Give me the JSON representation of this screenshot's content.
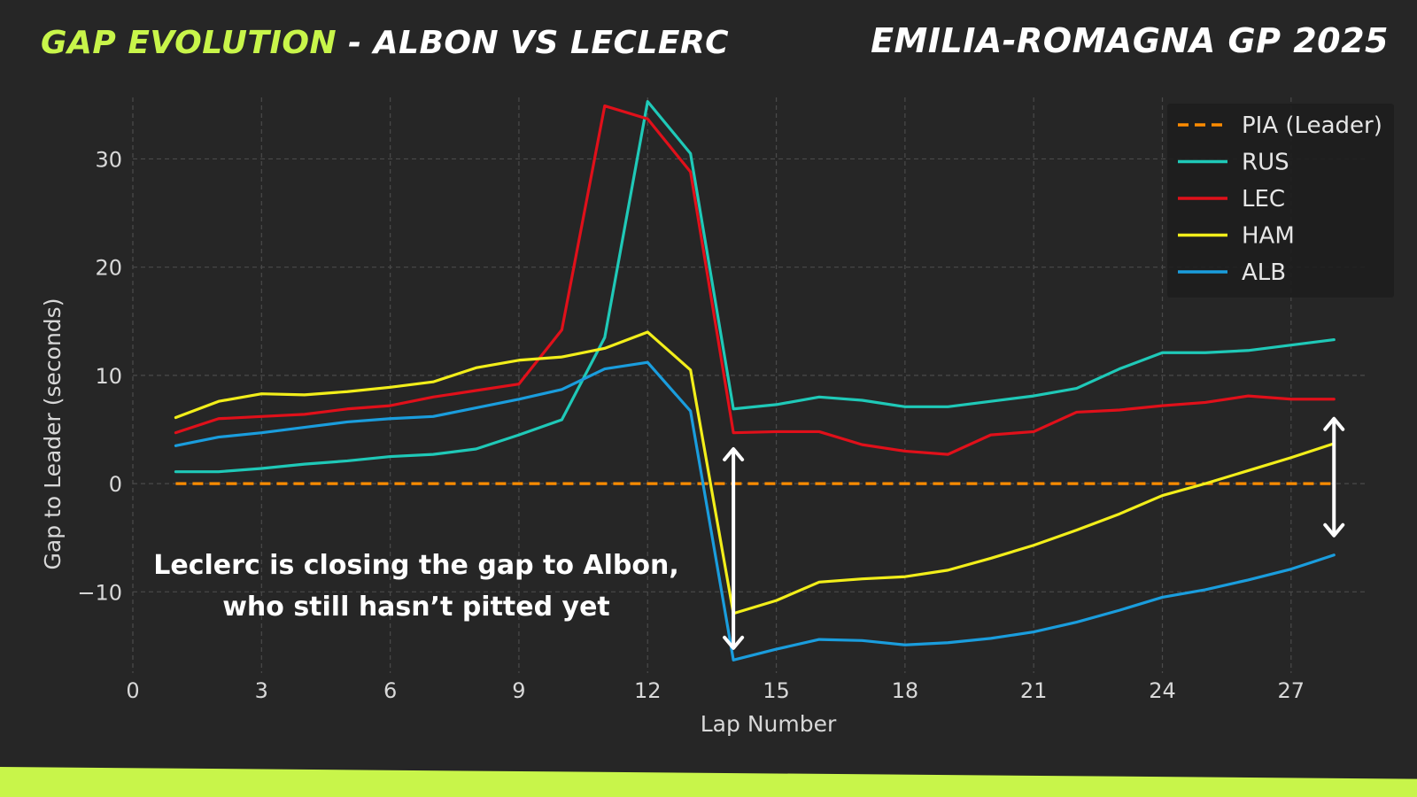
{
  "header": {
    "title_accent": "GAP EVOLUTION",
    "title_rest": " - ALBON VS LECLERC",
    "event": "EMILIA-ROMAGNA GP 2025"
  },
  "annotation": {
    "line1": "Leclerc is closing the gap to Albon,",
    "line2": "who still hasn’t pitted yet"
  },
  "colors": {
    "background": "#262626",
    "accent": "#c8f54a",
    "grid": "#4a4a4a"
  },
  "chart_data": {
    "type": "line",
    "title": "",
    "xlabel": "Lap Number",
    "ylabel": "Gap to Leader (seconds)",
    "xlim": [
      0,
      28.8
    ],
    "ylim": [
      -17.5,
      36.5
    ],
    "xticks": [
      0,
      3,
      6,
      9,
      12,
      15,
      18,
      21,
      24,
      27
    ],
    "yticks": [
      -10,
      0,
      10,
      20,
      30
    ],
    "ytick_labels": [
      "−10",
      "0",
      "10",
      "20",
      "30"
    ],
    "grid": true,
    "legend_position": "top-right",
    "x": [
      1,
      2,
      3,
      4,
      5,
      6,
      7,
      8,
      9,
      10,
      11,
      12,
      13,
      14,
      15,
      16,
      17,
      18,
      19,
      20,
      21,
      22,
      23,
      24,
      25,
      26,
      27,
      28
    ],
    "series": [
      {
        "name": "PIA (Leader)",
        "color": "#ff8c00",
        "dashed": true,
        "values": [
          0,
          0,
          0,
          0,
          0,
          0,
          0,
          0,
          0,
          0,
          0,
          0,
          0,
          0,
          0,
          0,
          0,
          0,
          0,
          0,
          0,
          0,
          0,
          0,
          0,
          0,
          0,
          0
        ]
      },
      {
        "name": "RUS",
        "color": "#1fc9b8",
        "dashed": false,
        "values": [
          1.1,
          1.1,
          1.4,
          1.8,
          2.1,
          2.5,
          2.7,
          3.2,
          4.5,
          5.9,
          13.5,
          35.3,
          30.5,
          6.9,
          7.3,
          8.0,
          7.7,
          7.1,
          7.1,
          7.6,
          8.1,
          8.8,
          10.6,
          12.1,
          12.1,
          12.3,
          12.8,
          13.3
        ]
      },
      {
        "name": "LEC",
        "color": "#e0101a",
        "dashed": false,
        "values": [
          4.7,
          6.0,
          6.2,
          6.4,
          6.9,
          7.2,
          8.0,
          8.6,
          9.2,
          14.2,
          34.9,
          33.7,
          28.8,
          4.7,
          4.8,
          4.8,
          3.6,
          3.0,
          2.7,
          4.5,
          4.8,
          6.6,
          6.8,
          7.2,
          7.5,
          8.1,
          7.8,
          7.8
        ]
      },
      {
        "name": "HAM",
        "color": "#f2ee1a",
        "dashed": false,
        "values": [
          6.1,
          7.6,
          8.3,
          8.2,
          8.5,
          8.9,
          9.4,
          10.7,
          11.4,
          11.7,
          12.5,
          14.0,
          10.5,
          -12.0,
          -10.8,
          -9.1,
          -8.8,
          -8.6,
          -8.0,
          -6.9,
          -5.7,
          -4.3,
          -2.8,
          -1.1,
          0.0,
          1.2,
          2.4,
          3.7
        ]
      },
      {
        "name": "ALB",
        "color": "#1a9ddd",
        "dashed": false,
        "values": [
          3.5,
          4.3,
          4.7,
          5.2,
          5.7,
          6.0,
          6.2,
          7.0,
          7.8,
          8.7,
          10.6,
          11.2,
          6.7,
          -16.3,
          -15.3,
          -14.4,
          -14.5,
          -14.9,
          -14.7,
          -14.3,
          -13.7,
          -12.8,
          -11.7,
          -10.5,
          -9.8,
          -8.9,
          -7.9,
          -6.6
        ]
      }
    ],
    "arrows": [
      {
        "x": 14,
        "y_from": -15.2,
        "y_to": 3.2
      },
      {
        "x": 28,
        "y_from": -4.8,
        "y_to": 6.0
      }
    ]
  }
}
